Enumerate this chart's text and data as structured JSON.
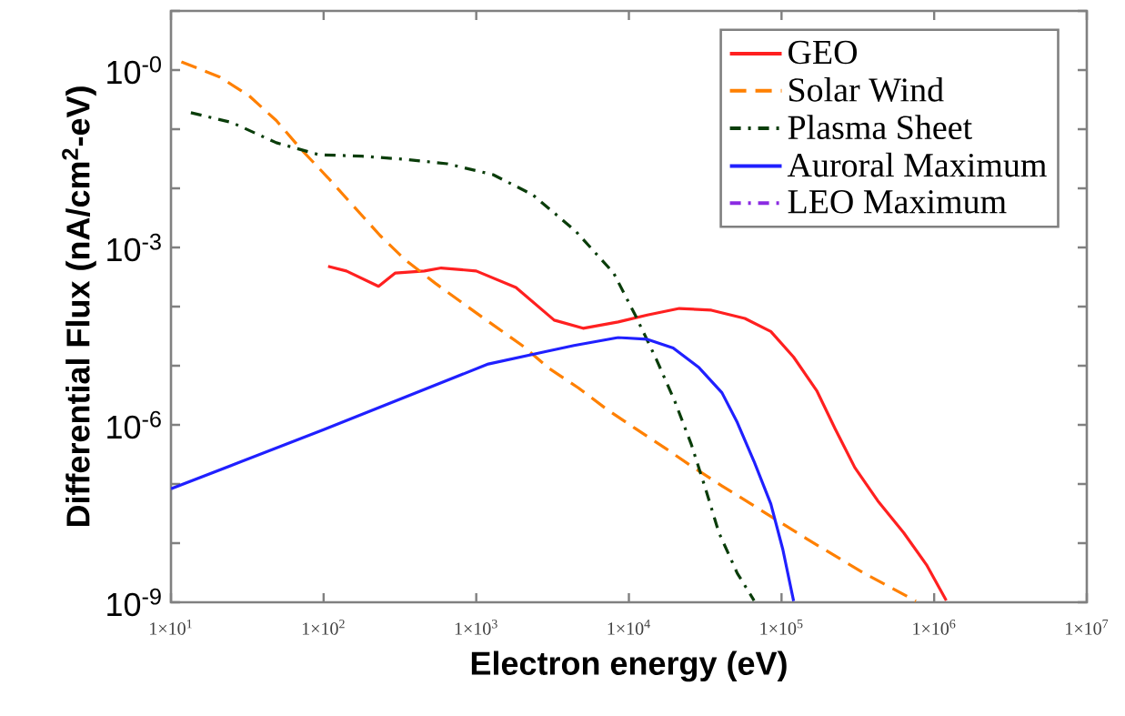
{
  "chart_data": {
    "type": "line",
    "xlabel": "Electron energy (eV)",
    "ylabel": "Differential Flux (nA/cm$^{2}$-eV)",
    "log": "xy",
    "xlim": [
      10,
      10000000
    ],
    "ylim": [
      1e-09,
      10
    ],
    "xticks": [
      {
        "value": 10,
        "label": "1×10$^{1}$"
      },
      {
        "value": 100,
        "label": "1×10$^{2}$"
      },
      {
        "value": 1000,
        "label": "1×10$^{3}$"
      },
      {
        "value": 10000,
        "label": "1×10$^{4}$"
      },
      {
        "value": 100000,
        "label": "1×10$^{5}$"
      },
      {
        "value": 1000000,
        "label": "1×10$^{6}$"
      },
      {
        "value": 10000000,
        "label": "1×10$^{7}$"
      }
    ],
    "yticks": [
      {
        "value": 1e-09,
        "label": "10$^{-9}$"
      },
      {
        "value": 1e-08,
        "label": null
      },
      {
        "value": 1e-07,
        "label": null
      },
      {
        "value": 1e-06,
        "label": "10$^{-6}$"
      },
      {
        "value": 1e-05,
        "label": null
      },
      {
        "value": 0.0001,
        "label": null
      },
      {
        "value": 0.001,
        "label": "10$^{-3}$"
      },
      {
        "value": 0.01,
        "label": null
      },
      {
        "value": 0.1,
        "label": null
      },
      {
        "value": 1,
        "label": "10$^{-0}$"
      },
      {
        "value": 10,
        "label": null
      }
    ],
    "legend": "top right",
    "series": [
      {
        "name": "GEO",
        "color": "#ff2020",
        "line_style": "solid",
        "x": [
          107,
          141,
          229,
          295,
          457,
          589,
          1000,
          1820,
          3240,
          5010,
          8510,
          13200,
          21400,
          34700,
          57500,
          85100,
          120000,
          170000,
          224000,
          302000,
          427000,
          631000,
          891000,
          1200000
        ],
        "values": [
          0.00048,
          0.0004,
          0.00022,
          0.00037,
          0.0004,
          0.00045,
          0.0004,
          0.00021,
          5.9e-05,
          4.3e-05,
          5.5e-05,
          7.2e-05,
          9.3e-05,
          8.7e-05,
          6.3e-05,
          3.8e-05,
          1.4e-05,
          3.8e-06,
          8.7e-07,
          1.9e-07,
          5.2e-08,
          1.5e-08,
          4.3e-09,
          1.07e-09
        ]
      },
      {
        "name": "Solar Wind",
        "color": "#ff8000",
        "line_style": "dashed",
        "x": [
          11.7,
          20.9,
          32.4,
          49,
          71,
          107,
          158,
          234,
          347,
          537,
          832,
          1290,
          2000,
          3020,
          4680,
          7240,
          11000,
          17400,
          25700,
          40700,
          63100,
          145000,
          347000,
          759000
        ],
        "values": [
          1.38,
          0.76,
          0.37,
          0.14,
          0.046,
          0.015,
          0.0049,
          0.0016,
          0.0006,
          0.00025,
          0.00011,
          4.9e-05,
          2.2e-05,
          8.9e-06,
          4.2e-06,
          1.8e-06,
          8.7e-07,
          4e-07,
          2e-07,
          9.3e-08,
          4.6e-08,
          1.2e-08,
          3.1e-09,
          1.05e-09
        ]
      },
      {
        "name": "Plasma Sheet",
        "color": "#0a3d0a",
        "line_style": "dashdot",
        "x": [
          13.5,
          25,
          49,
          93,
          178,
          339,
          646,
          1290,
          2340,
          4470,
          7940,
          11000,
          15100,
          20000,
          25700,
          31600,
          38900,
          51300,
          66100
        ],
        "values": [
          0.19,
          0.13,
          0.059,
          0.037,
          0.035,
          0.031,
          0.026,
          0.017,
          0.0078,
          0.0019,
          0.00037,
          7.2e-05,
          1.3e-05,
          2.5e-06,
          4.6e-07,
          8.7e-08,
          1.5e-08,
          3.1e-09,
          1.07e-09
        ]
      },
      {
        "name": "Auroral Maximum",
        "color": "#2020ff",
        "line_style": "solid",
        "x": [
          10,
          100,
          1200,
          2750,
          4370,
          8510,
          13200,
          19500,
          28800,
          40700,
          51300,
          66100,
          85100,
          102000,
          120000
        ],
        "values": [
          8.3e-08,
          8.3e-07,
          1.07e-05,
          1.7e-05,
          2.2e-05,
          3e-05,
          2.8e-05,
          2e-05,
          9.3e-06,
          3.5e-06,
          1.1e-06,
          2.4e-07,
          4.6e-08,
          7.8e-09,
          1.05e-09
        ]
      },
      {
        "name": "LEO Maximum",
        "color": "#8a2be2",
        "line_style": "dashdot"
      }
    ]
  }
}
